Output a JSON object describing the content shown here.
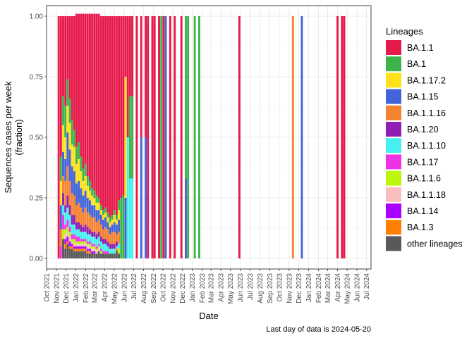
{
  "chart_data": {
    "type": "bar",
    "stacked": true,
    "title": "",
    "xlabel": "Date",
    "ylabel": "Sequences cases per week\n(fraction)",
    "ylim": [
      0,
      1
    ],
    "yticks": [
      "0.00",
      "0.25",
      "0.50",
      "0.75",
      "1.00"
    ],
    "ytick_values": [
      0,
      0.25,
      0.5,
      0.75,
      1.0
    ],
    "x_range": [
      "2021-10-01",
      "2024-07-15"
    ],
    "xticks": [
      {
        "date": "2021-10-01",
        "label": "Oct 2021"
      },
      {
        "date": "2021-11-01",
        "label": "Nov 2021"
      },
      {
        "date": "2021-12-01",
        "label": "Dec 2021"
      },
      {
        "date": "2022-01-01",
        "label": "Jan 2022"
      },
      {
        "date": "2022-02-01",
        "label": "Feb 2022"
      },
      {
        "date": "2022-03-01",
        "label": "Mar 2022"
      },
      {
        "date": "2022-04-01",
        "label": "Apr 2022"
      },
      {
        "date": "2022-05-01",
        "label": "May 2022"
      },
      {
        "date": "2022-06-01",
        "label": "Jun 2022"
      },
      {
        "date": "2022-07-01",
        "label": "Jul 2022"
      },
      {
        "date": "2022-08-01",
        "label": "Aug 2022"
      },
      {
        "date": "2022-09-01",
        "label": "Sep 2022"
      },
      {
        "date": "2022-10-01",
        "label": "Oct 2022"
      },
      {
        "date": "2022-11-01",
        "label": "Nov 2022"
      },
      {
        "date": "2022-12-01",
        "label": "Dec 2022"
      },
      {
        "date": "2023-01-01",
        "label": "Jan 2023"
      },
      {
        "date": "2023-02-01",
        "label": "Feb 2023"
      },
      {
        "date": "2023-03-01",
        "label": "Mar 2023"
      },
      {
        "date": "2023-04-01",
        "label": "Apr 2023"
      },
      {
        "date": "2023-05-01",
        "label": "May 2023"
      },
      {
        "date": "2023-06-01",
        "label": "Jun 2023"
      },
      {
        "date": "2023-07-01",
        "label": "Jul 2023"
      },
      {
        "date": "2023-08-01",
        "label": "Aug 2023"
      },
      {
        "date": "2023-09-01",
        "label": "Sep 2023"
      },
      {
        "date": "2023-10-01",
        "label": "Oct 2023"
      },
      {
        "date": "2023-11-01",
        "label": "Nov 2023"
      },
      {
        "date": "2023-12-01",
        "label": "Dec 2023"
      },
      {
        "date": "2024-01-01",
        "label": "Jan 2024"
      },
      {
        "date": "2024-02-01",
        "label": "Feb 2024"
      },
      {
        "date": "2024-03-01",
        "label": "Mar 2024"
      },
      {
        "date": "2024-04-01",
        "label": "Apr 2024"
      },
      {
        "date": "2024-05-01",
        "label": "May 2024"
      },
      {
        "date": "2024-06-01",
        "label": "Jun 2024"
      },
      {
        "date": "2024-07-01",
        "label": "Jul 2024"
      }
    ],
    "legend_title": "Lineages",
    "legend_position": "right",
    "grid": true,
    "series": [
      {
        "name": "BA.1.1",
        "color": "#e6194b"
      },
      {
        "name": "BA.1",
        "color": "#3cb44b"
      },
      {
        "name": "BA.1.17.2",
        "color": "#ffe119"
      },
      {
        "name": "BA.1.15",
        "color": "#4363d8"
      },
      {
        "name": "BA.1.1.16",
        "color": "#f58231"
      },
      {
        "name": "BA.1.20",
        "color": "#911eb4"
      },
      {
        "name": "BA.1.1.10",
        "color": "#46f0f0"
      },
      {
        "name": "BA.1.17",
        "color": "#f032e6"
      },
      {
        "name": "BA.1.1.6",
        "color": "#bcf60c"
      },
      {
        "name": "BA.1.1.18",
        "color": "#fabebe"
      },
      {
        "name": "BA.1.14",
        "color": "#aa00ff"
      },
      {
        "name": "BA.1.3",
        "color": "#ff7f00"
      },
      {
        "name": "other lineages",
        "color": "#595959"
      }
    ],
    "stack_order_bottom_to_top": [
      "other lineages",
      "BA.1.3",
      "BA.1.14",
      "BA.1.1.18",
      "BA.1.1.6",
      "BA.1.17",
      "BA.1.1.10",
      "BA.1.20",
      "BA.1.1.16",
      "BA.1.15",
      "BA.1.17.2",
      "BA.1",
      "BA.1.1"
    ],
    "weeks": [
      {
        "date": "2021-11-08",
        "values": {
          "BA.1.1": 1.0
        }
      },
      {
        "date": "2021-11-15",
        "values": {
          "BA.1.1": 0.58,
          "BA.1": 0.1,
          "BA.1.17.2": 0.1,
          "BA.1.15": 0.1,
          "BA.1.1.16": 0.07,
          "BA.1.17": 0.05
        }
      },
      {
        "date": "2021-11-22",
        "values": {
          "BA.1.1": 0.33,
          "BA.1": 0.12,
          "BA.1.17.2": 0.11,
          "BA.1.15": 0.1,
          "BA.1.1.16": 0.07,
          "BA.1.20": 0.05,
          "BA.1.1.10": 0.04,
          "BA.1.17": 0.06,
          "BA.1.1.6": 0.04,
          "other lineages": 0.08
        }
      },
      {
        "date": "2021-11-29",
        "values": {
          "BA.1.1": 0.37,
          "BA.1": 0.13,
          "BA.1.17.2": 0.09,
          "BA.1.15": 0.09,
          "BA.1.1.16": 0.1,
          "BA.1.20": 0.03,
          "BA.1.1.10": 0.05,
          "BA.1.17": 0.02,
          "BA.1.1.6": 0.02,
          "BA.1.1.18": 0.02,
          "BA.1.14": 0.02,
          "BA.1.3": 0.02,
          "other lineages": 0.04
        }
      },
      {
        "date": "2021-12-06",
        "values": {
          "BA.1.1": 0.26,
          "BA.1": 0.11,
          "BA.1.17.2": 0.11,
          "BA.1.15": 0.14,
          "BA.1.1.16": 0.12,
          "BA.1.20": 0.05,
          "BA.1.1.10": 0.05,
          "BA.1.17": 0.03,
          "BA.1.1.6": 0.02,
          "BA.1.1.18": 0.02,
          "BA.1.14": 0.02,
          "BA.1.3": 0.01,
          "other lineages": 0.06
        }
      },
      {
        "date": "2021-12-13",
        "values": {
          "BA.1.1": 0.34,
          "BA.1": 0.1,
          "BA.1.17.2": 0.11,
          "BA.1.15": 0.13,
          "BA.1.1.16": 0.1,
          "BA.1.20": 0.04,
          "BA.1.1.10": 0.05,
          "BA.1.17": 0.02,
          "BA.1.1.6": 0.02,
          "BA.1.1.18": 0.02,
          "BA.1.14": 0.02,
          "BA.1.3": 0.01,
          "other lineages": 0.04
        }
      },
      {
        "date": "2021-12-20",
        "values": {
          "BA.1.1": 0.43,
          "BA.1": 0.1,
          "BA.1.17.2": 0.09,
          "BA.1.15": 0.11,
          "BA.1.1.16": 0.09,
          "BA.1.20": 0.04,
          "BA.1.1.10": 0.04,
          "BA.1.17": 0.02,
          "BA.1.1.6": 0.01,
          "BA.1.1.18": 0.01,
          "BA.1.14": 0.01,
          "BA.1.3": 0.01,
          "other lineages": 0.04
        }
      },
      {
        "date": "2021-12-27",
        "values": {
          "BA.1.1": 0.47,
          "BA.1": 0.07,
          "BA.1.17.2": 0.1,
          "BA.1.15": 0.1,
          "BA.1.1.16": 0.08,
          "BA.1.20": 0.04,
          "BA.1.1.10": 0.04,
          "BA.1.17": 0.02,
          "BA.1.1.6": 0.02,
          "BA.1.1.18": 0.01,
          "BA.1.14": 0.01,
          "BA.1.3": 0.01,
          "other lineages": 0.03
        }
      },
      {
        "date": "2022-01-03",
        "values": {
          "BA.1.1": 0.55,
          "BA.1": 0.07,
          "BA.1.17.2": 0.08,
          "BA.1.15": 0.09,
          "BA.1.1.16": 0.07,
          "BA.1.20": 0.03,
          "BA.1.1.10": 0.03,
          "BA.1.17": 0.02,
          "BA.1.1.6": 0.01,
          "BA.1.1.18": 0.01,
          "BA.1.14": 0.01,
          "BA.1.3": 0.01,
          "other lineages": 0.03
        }
      },
      {
        "date": "2022-01-10",
        "values": {
          "BA.1.1": 0.53,
          "BA.1": 0.07,
          "BA.1.17.2": 0.09,
          "BA.1.15": 0.09,
          "BA.1.1.16": 0.08,
          "BA.1.20": 0.03,
          "BA.1.1.10": 0.03,
          "BA.1.17": 0.02,
          "BA.1.1.6": 0.01,
          "BA.1.1.18": 0.01,
          "BA.1.14": 0.01,
          "BA.1.3": 0.01,
          "other lineages": 0.03
        }
      },
      {
        "date": "2022-01-17",
        "values": {
          "BA.1.1": 0.59,
          "BA.1": 0.06,
          "BA.1.17.2": 0.07,
          "BA.1.15": 0.08,
          "BA.1.1.16": 0.07,
          "BA.1.20": 0.03,
          "BA.1.1.10": 0.03,
          "BA.1.17": 0.01,
          "BA.1.1.6": 0.01,
          "BA.1.1.18": 0.01,
          "BA.1.14": 0.01,
          "BA.1.3": 0.01,
          "other lineages": 0.03
        }
      },
      {
        "date": "2022-01-24",
        "values": {
          "BA.1.1": 0.64,
          "BA.1": 0.05,
          "BA.1.17.2": 0.06,
          "BA.1.15": 0.07,
          "BA.1.1.16": 0.06,
          "BA.1.20": 0.02,
          "BA.1.1.10": 0.03,
          "BA.1.17": 0.01,
          "BA.1.1.6": 0.01,
          "BA.1.1.18": 0.01,
          "BA.1.14": 0.01,
          "BA.1.3": 0.01,
          "other lineages": 0.03
        }
      },
      {
        "date": "2022-01-31",
        "values": {
          "BA.1.1": 0.62,
          "BA.1": 0.05,
          "BA.1.17.2": 0.06,
          "BA.1.15": 0.07,
          "BA.1.1.16": 0.07,
          "BA.1.20": 0.03,
          "BA.1.1.10": 0.03,
          "BA.1.17": 0.01,
          "BA.1.1.6": 0.01,
          "BA.1.1.18": 0.01,
          "BA.1.14": 0.01,
          "BA.1.3": 0.01,
          "other lineages": 0.03
        }
      },
      {
        "date": "2022-02-07",
        "values": {
          "BA.1.1": 0.67,
          "BA.1": 0.04,
          "BA.1.17.2": 0.05,
          "BA.1.15": 0.06,
          "BA.1.1.16": 0.06,
          "BA.1.20": 0.03,
          "BA.1.1.10": 0.03,
          "BA.1.17": 0.01,
          "BA.1.1.6": 0.01,
          "BA.1.1.18": 0.01,
          "BA.1.14": 0.01,
          "BA.1.3": 0.01,
          "other lineages": 0.02
        }
      },
      {
        "date": "2022-02-14",
        "values": {
          "BA.1.1": 0.69,
          "BA.1": 0.04,
          "BA.1.17.2": 0.04,
          "BA.1.15": 0.06,
          "BA.1.1.16": 0.06,
          "BA.1.20": 0.02,
          "BA.1.1.10": 0.03,
          "BA.1.17": 0.01,
          "BA.1.1.6": 0.01,
          "BA.1.1.18": 0.01,
          "BA.1.14": 0.01,
          "BA.1.3": 0.01,
          "other lineages": 0.02
        }
      },
      {
        "date": "2022-02-21",
        "values": {
          "BA.1.1": 0.72,
          "BA.1": 0.03,
          "BA.1.17.2": 0.04,
          "BA.1.15": 0.05,
          "BA.1.1.16": 0.06,
          "BA.1.20": 0.02,
          "BA.1.1.10": 0.03,
          "BA.1.17": 0.01,
          "BA.1.1.6": 0.01,
          "BA.1.1.18": 0.01,
          "BA.1.14": 0.01,
          "other lineages": 0.02
        }
      },
      {
        "date": "2022-02-28",
        "values": {
          "BA.1.1": 0.73,
          "BA.1": 0.03,
          "BA.1.17.2": 0.03,
          "BA.1.15": 0.05,
          "BA.1.1.16": 0.06,
          "BA.1.20": 0.02,
          "BA.1.1.10": 0.03,
          "BA.1.17": 0.01,
          "BA.1.1.6": 0.01,
          "BA.1.1.18": 0.01,
          "BA.1.14": 0.01,
          "other lineages": 0.02
        }
      },
      {
        "date": "2022-03-07",
        "values": {
          "BA.1.1": 0.75,
          "BA.1": 0.03,
          "BA.1.17.2": 0.03,
          "BA.1.15": 0.05,
          "BA.1.1.16": 0.05,
          "BA.1.20": 0.02,
          "BA.1.1.10": 0.03,
          "BA.1.17": 0.01,
          "BA.1.1.6": 0.01,
          "BA.1.1.18": 0.01,
          "other lineages": 0.02
        }
      },
      {
        "date": "2022-03-14",
        "values": {
          "BA.1.1": 0.76,
          "BA.1": 0.02,
          "BA.1.17.2": 0.03,
          "BA.1.15": 0.04,
          "BA.1.1.16": 0.05,
          "BA.1.20": 0.02,
          "BA.1.1.10": 0.03,
          "BA.1.17": 0.01,
          "BA.1.1.6": 0.01,
          "BA.1.1.18": 0.01,
          "other lineages": 0.03
        }
      },
      {
        "date": "2022-03-21",
        "values": {
          "BA.1.1": 0.78,
          "BA.1": 0.02,
          "BA.1.17.2": 0.02,
          "BA.1.15": 0.04,
          "BA.1.1.16": 0.05,
          "BA.1.20": 0.02,
          "BA.1.1.10": 0.03,
          "BA.1.17": 0.01,
          "BA.1.1.6": 0.01,
          "other lineages": 0.02
        }
      },
      {
        "date": "2022-03-28",
        "values": {
          "BA.1.1": 0.8,
          "BA.1": 0.02,
          "BA.1.17.2": 0.02,
          "BA.1.15": 0.04,
          "BA.1.1.16": 0.04,
          "BA.1.20": 0.02,
          "BA.1.1.10": 0.03,
          "BA.1.17": 0.01,
          "other lineages": 0.02
        }
      },
      {
        "date": "2022-04-04",
        "values": {
          "BA.1.1": 0.79,
          "BA.1": 0.02,
          "BA.1.17.2": 0.02,
          "BA.1.15": 0.04,
          "BA.1.1.16": 0.05,
          "BA.1.20": 0.02,
          "BA.1.1.10": 0.03,
          "BA.1.17": 0.01,
          "other lineages": 0.02
        }
      },
      {
        "date": "2022-04-11",
        "values": {
          "BA.1.1": 0.81,
          "BA.1": 0.02,
          "BA.1.17.2": 0.02,
          "BA.1.15": 0.03,
          "BA.1.1.16": 0.05,
          "BA.1.20": 0.02,
          "BA.1.1.10": 0.02,
          "BA.1.17": 0.01,
          "other lineages": 0.02
        }
      },
      {
        "date": "2022-04-18",
        "values": {
          "BA.1.1": 0.83,
          "BA.1": 0.02,
          "BA.1.17.2": 0.02,
          "BA.1.15": 0.03,
          "BA.1.1.16": 0.04,
          "BA.1.20": 0.02,
          "BA.1.1.10": 0.02,
          "other lineages": 0.02
        }
      },
      {
        "date": "2022-04-25",
        "values": {
          "BA.1.1": 0.82,
          "BA.1": 0.02,
          "BA.1.17.2": 0.02,
          "BA.1.15": 0.03,
          "BA.1.1.16": 0.05,
          "BA.1.20": 0.02,
          "BA.1.1.10": 0.02,
          "other lineages": 0.02
        }
      },
      {
        "date": "2022-05-02",
        "values": {
          "BA.1.1": 0.8,
          "BA.1": 0.02,
          "BA.1.17.2": 0.03,
          "BA.1.15": 0.04,
          "BA.1.1.16": 0.05,
          "BA.1.20": 0.02,
          "BA.1.1.10": 0.02,
          "other lineages": 0.02
        }
      },
      {
        "date": "2022-05-09",
        "values": {
          "BA.1.1": 0.82,
          "BA.1": 0.02,
          "BA.1.17.2": 0.02,
          "BA.1.15": 0.04,
          "BA.1.1.16": 0.03,
          "BA.1.20": 0.02,
          "BA.1.1.10": 0.01,
          "BA.1.3": 0.01,
          "other lineages": 0.03
        }
      },
      {
        "date": "2022-05-16",
        "values": {
          "BA.1.1": 0.76,
          "BA.1": 0.04,
          "BA.1.17.2": 0.04,
          "BA.1.15": 0.05,
          "BA.1.1.16": 0.05,
          "BA.1.1.10": 0.02,
          "BA.1.1.6": 0.02,
          "other lineages": 0.02
        }
      },
      {
        "date": "2022-05-23",
        "values": {
          "BA.1.1": 0.75,
          "BA.1": 0.25
        }
      },
      {
        "date": "2022-05-30",
        "values": {
          "BA.1.1": 0.74,
          "BA.1": 0.26
        }
      },
      {
        "date": "2022-06-06",
        "values": {
          "BA.1.1": 0.25,
          "BA.1.17.2": 0.5,
          "BA.1.15": 0.25
        }
      },
      {
        "date": "2022-06-13",
        "values": {
          "BA.1.1": 0.5,
          "BA.1.1.10": 0.5
        }
      },
      {
        "date": "2022-06-20",
        "values": {
          "BA.1.1": 0.33,
          "BA.1": 0.34,
          "BA.1.1.10": 0.33
        }
      },
      {
        "date": "2022-06-27",
        "values": {
          "BA.1.1": 0.33,
          "BA.1": 0.34,
          "BA.1.1.10": 0.33
        }
      },
      {
        "date": "2022-07-11",
        "values": {
          "BA.1.1": 1.0
        }
      },
      {
        "date": "2022-07-25",
        "values": {
          "BA.1.1": 0.5,
          "BA.1.15": 0.5
        }
      },
      {
        "date": "2022-08-08",
        "values": {
          "BA.1.1": 0.5,
          "BA.1.15": 0.5
        }
      },
      {
        "date": "2022-08-15",
        "values": {
          "BA.1.1": 1.0
        }
      },
      {
        "date": "2022-08-29",
        "values": {
          "BA.1.1": 1.0
        }
      },
      {
        "date": "2022-09-05",
        "values": {
          "BA.1.1": 1.0
        }
      },
      {
        "date": "2022-09-19",
        "values": {
          "BA.1.1": 1.0
        }
      },
      {
        "date": "2022-09-26",
        "values": {
          "BA.1": 1.0
        }
      },
      {
        "date": "2022-10-03",
        "values": {
          "BA.1.1": 1.0
        }
      },
      {
        "date": "2022-10-10",
        "values": {
          "BA.1.15": 1.0
        }
      },
      {
        "date": "2022-10-24",
        "values": {
          "BA.1.1": 1.0
        }
      },
      {
        "date": "2022-11-07",
        "values": {
          "BA.1.1": 1.0
        }
      },
      {
        "date": "2022-11-28",
        "values": {
          "BA.1.1": 1.0
        }
      },
      {
        "date": "2022-12-12",
        "values": {
          "BA.1": 0.67,
          "BA.1.15": 0.33
        }
      },
      {
        "date": "2022-12-19",
        "values": {
          "BA.1": 1.0
        }
      },
      {
        "date": "2023-01-09",
        "values": {
          "BA.1": 1.0
        }
      },
      {
        "date": "2023-01-23",
        "values": {
          "BA.1": 1.0
        }
      },
      {
        "date": "2023-05-29",
        "values": {
          "BA.1.1": 1.0
        }
      },
      {
        "date": "2023-11-13",
        "values": {
          "BA.1.1.16": 1.0
        }
      },
      {
        "date": "2023-12-11",
        "values": {
          "BA.1.15": 1.0
        }
      },
      {
        "date": "2024-04-01",
        "values": {
          "BA.1.1": 1.0
        }
      },
      {
        "date": "2024-04-15",
        "values": {
          "BA.1.1": 1.0
        }
      },
      {
        "date": "2024-04-22",
        "values": {
          "BA.1.1": 1.0
        }
      }
    ],
    "caption": "Last day of data is 2024-05-20"
  }
}
